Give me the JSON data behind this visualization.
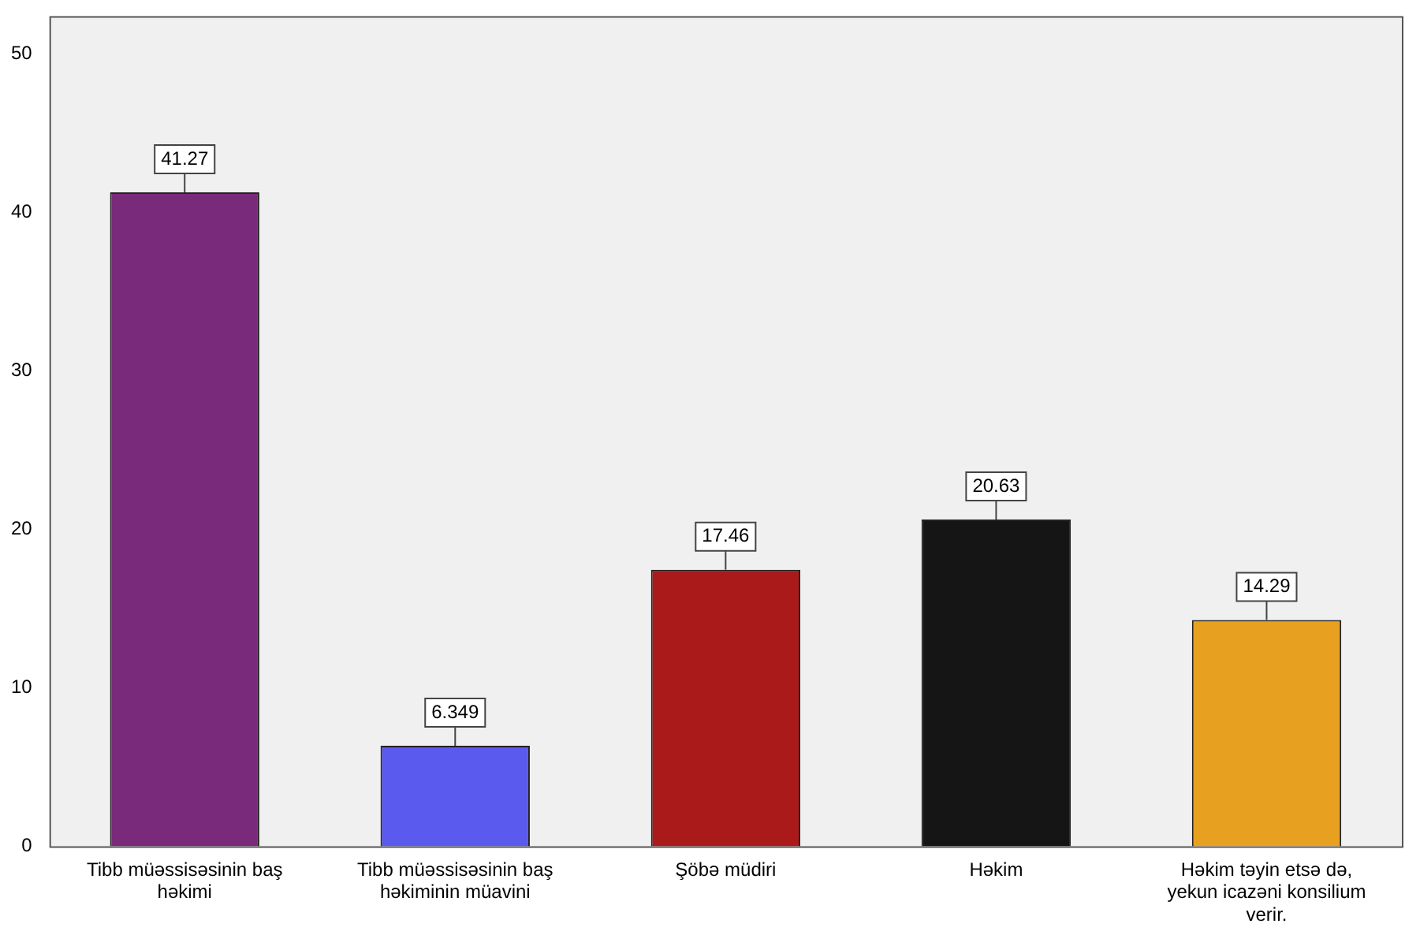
{
  "chart_data": {
    "type": "bar",
    "categories": [
      "Tibb müəssisəsinin baş həkimi",
      "Tibb müəssisəsinin baş həkiminin müavini",
      "Şöbə müdiri",
      "Həkim",
      "Həkim təyin etsə də, yekun icazəni konsilium verir."
    ],
    "values": [
      41.27,
      6.349,
      17.46,
      20.63,
      14.29
    ],
    "colors": [
      "#7a2a7a",
      "#5a5aee",
      "#aa1a1a",
      "#151515",
      "#e8a020"
    ],
    "ylim": [
      0,
      52.4
    ],
    "yticks": [
      0,
      10,
      20,
      30,
      40,
      50
    ],
    "grid": false,
    "legend": false,
    "data_labels": true
  }
}
